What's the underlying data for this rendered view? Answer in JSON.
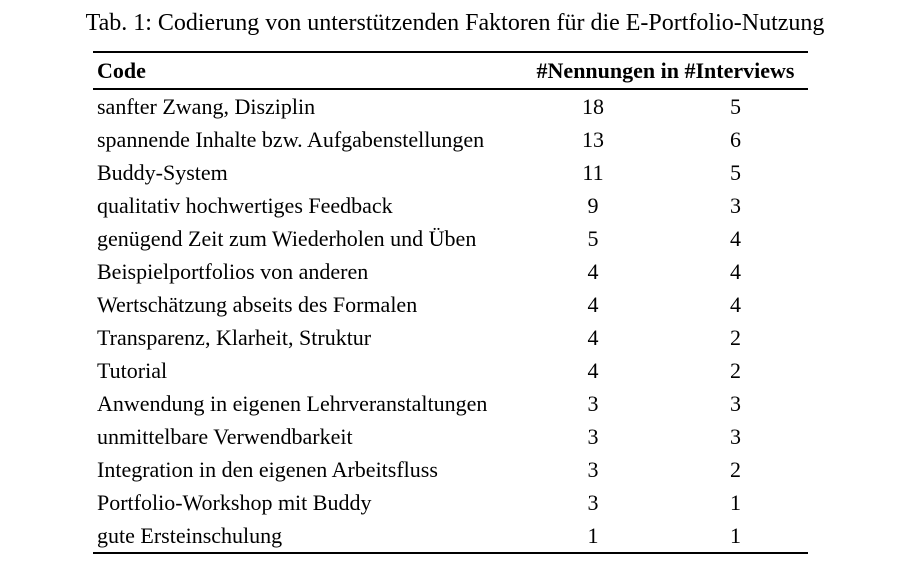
{
  "page": {
    "caption": "Tab. 1: Codierung von unterstützenden Faktoren für die E-Portfolio-Nutzung"
  },
  "colors": {
    "text": "#000000",
    "background": "#ffffff",
    "rule": "#000000"
  },
  "table": {
    "headers": {
      "code": "Code",
      "counts": "#Nennungen in #Interviews"
    },
    "columns": [
      "code",
      "nennungen",
      "interviews"
    ],
    "rows": [
      {
        "code": "sanfter Zwang, Disziplin",
        "nennungen": "18",
        "interviews": "5"
      },
      {
        "code": "spannende Inhalte bzw. Aufgabenstellungen",
        "nennungen": "13",
        "interviews": "6"
      },
      {
        "code": "Buddy-System",
        "nennungen": "11",
        "interviews": "5"
      },
      {
        "code": "qualitativ hochwertiges Feedback",
        "nennungen": "9",
        "interviews": "3"
      },
      {
        "code": "genügend Zeit zum Wiederholen und Üben",
        "nennungen": "5",
        "interviews": "4"
      },
      {
        "code": "Beispielportfolios von anderen",
        "nennungen": "4",
        "interviews": "4"
      },
      {
        "code": "Wertschätzung abseits des Formalen",
        "nennungen": "4",
        "interviews": "4"
      },
      {
        "code": "Transparenz, Klarheit, Struktur",
        "nennungen": "4",
        "interviews": "2"
      },
      {
        "code": "Tutorial",
        "nennungen": "4",
        "interviews": "2"
      },
      {
        "code": "Anwendung in eigenen Lehrveranstaltungen",
        "nennungen": "3",
        "interviews": "3"
      },
      {
        "code": "unmittelbare Verwendbarkeit",
        "nennungen": "3",
        "interviews": "3"
      },
      {
        "code": "Integration in den eigenen Arbeitsfluss",
        "nennungen": "3",
        "interviews": "2"
      },
      {
        "code": "Portfolio-Workshop mit Buddy",
        "nennungen": "3",
        "interviews": "1"
      },
      {
        "code": "gute Ersteinschulung",
        "nennungen": "1",
        "interviews": "1"
      }
    ]
  }
}
